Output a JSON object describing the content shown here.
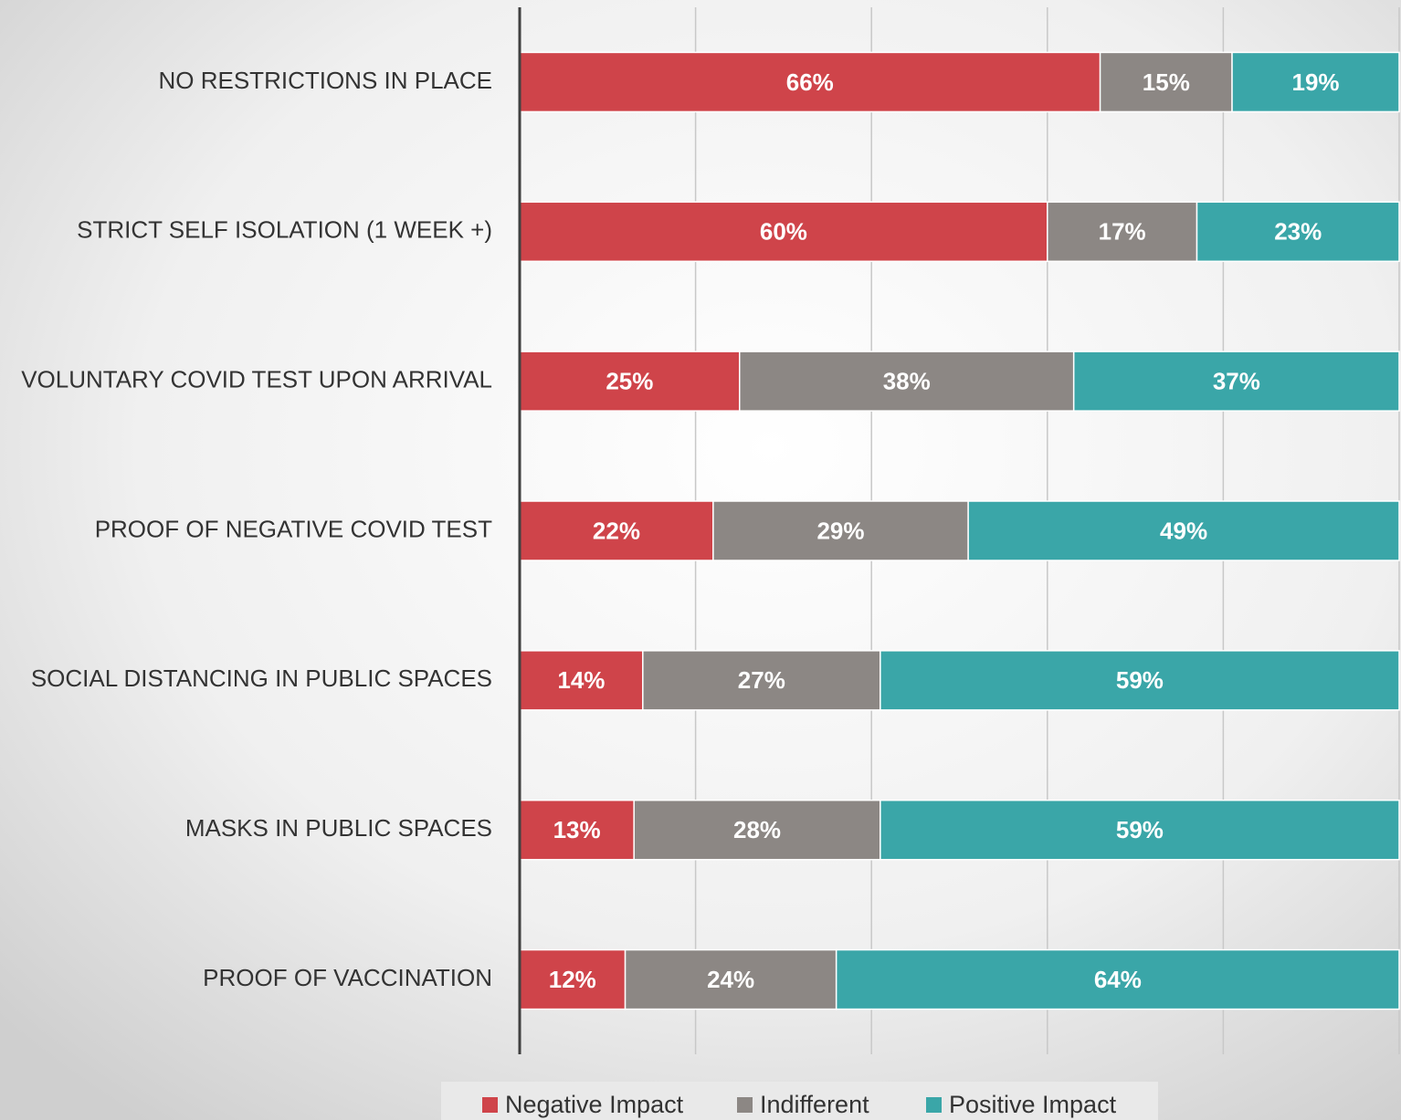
{
  "chart_data": {
    "type": "stacked_bar_horizontal",
    "categories": [
      "NO RESTRICTIONS IN PLACE",
      "STRICT SELF ISOLATION (1 WEEK +)",
      "VOLUNTARY COVID TEST UPON ARRIVAL",
      "PROOF OF NEGATIVE COVID TEST",
      "SOCIAL DISTANCING IN PUBLIC SPACES",
      "MASKS IN PUBLIC SPACES",
      "PROOF OF VACCINATION"
    ],
    "series": [
      {
        "name": "Negative Impact",
        "color": "#cf444a",
        "values": [
          66,
          60,
          25,
          22,
          14,
          13,
          12
        ],
        "value_labels": [
          "66%",
          "60%",
          "25%",
          "22%",
          "14%",
          "13%",
          "12%"
        ]
      },
      {
        "name": "Indifferent",
        "color": "#8c8784",
        "values": [
          15,
          17,
          38,
          29,
          27,
          28,
          24
        ],
        "value_labels": [
          "15%",
          "17%",
          "38%",
          "29%",
          "27%",
          "28%",
          "24%"
        ]
      },
      {
        "name": "Positive Impact",
        "color": "#3aa6a8",
        "values": [
          19,
          23,
          37,
          49,
          59,
          59,
          64
        ],
        "value_labels": [
          "19%",
          "23%",
          "37%",
          "49%",
          "59%",
          "59%",
          "64%"
        ]
      }
    ],
    "xlim": [
      0,
      100
    ],
    "xticks": [
      0,
      20,
      40,
      60,
      80,
      100
    ],
    "grid": true,
    "legend": "bottom"
  }
}
